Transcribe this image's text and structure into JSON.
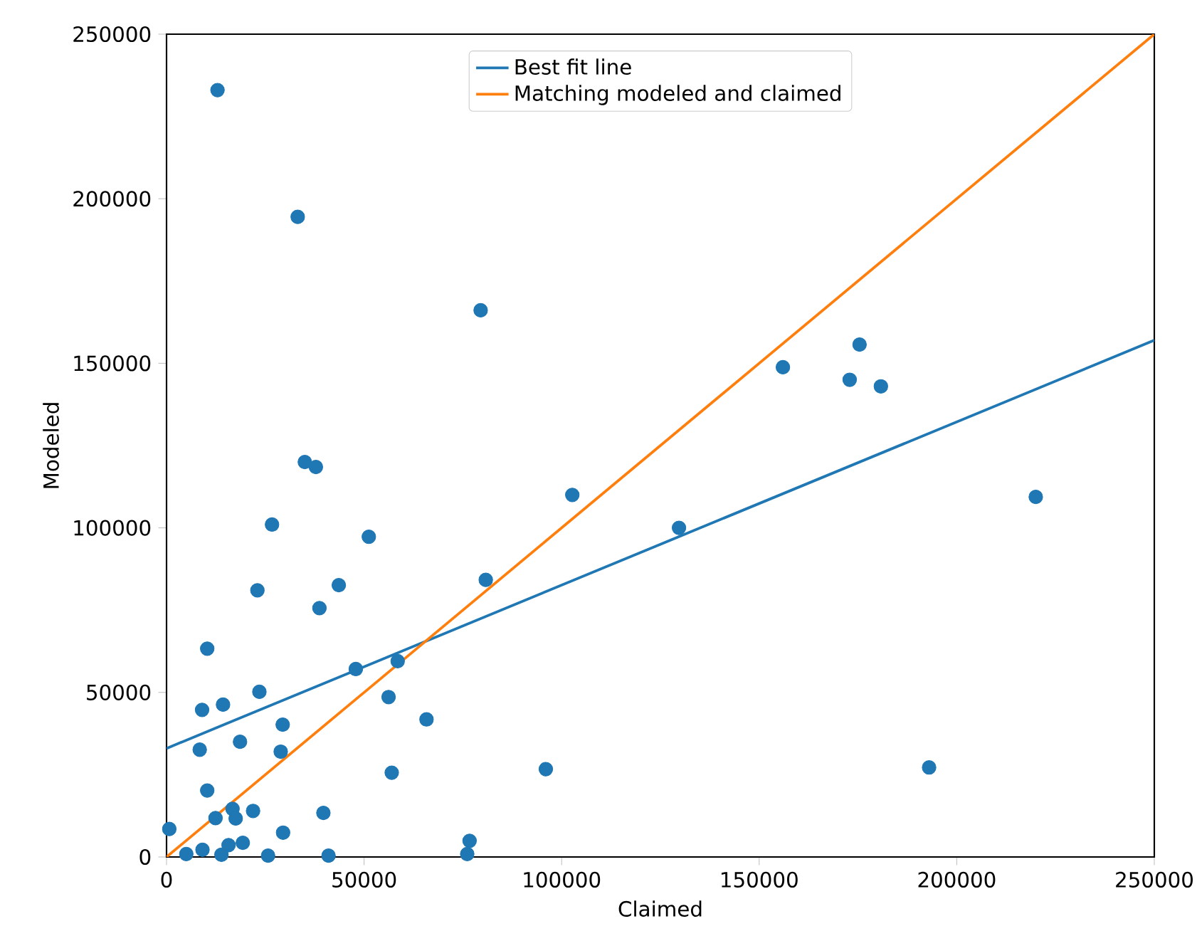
{
  "chart_data": {
    "type": "scatter",
    "xlabel": "Claimed",
    "ylabel": "Modeled",
    "xlim": [
      0,
      250000
    ],
    "ylim": [
      0,
      250000
    ],
    "xticks": [
      0,
      50000,
      100000,
      150000,
      200000,
      250000
    ],
    "yticks": [
      0,
      50000,
      100000,
      150000,
      200000,
      250000
    ],
    "legend": "top",
    "grid": false,
    "series": [
      {
        "marker": "circle",
        "color": "#1f77b4",
        "x": [
          12900,
          33200,
          79500,
          35000,
          37800,
          26700,
          51200,
          23000,
          43600,
          38700,
          80800,
          102700,
          129700,
          156000,
          175400,
          172900,
          180800,
          220000,
          193000,
          96000,
          10300,
          47900,
          58500,
          23500,
          9000,
          14300,
          29400,
          56200,
          65800,
          8400,
          18600,
          28900,
          57000,
          10300,
          700,
          12400,
          16700,
          17500,
          21900,
          39700,
          29500,
          19300,
          15700,
          9100,
          5000,
          13900,
          25700,
          41000,
          76700,
          76100
        ],
        "values": [
          233000,
          194500,
          166100,
          120000,
          118500,
          101000,
          97300,
          81000,
          82600,
          75600,
          84200,
          110000,
          100000,
          148800,
          155700,
          145000,
          143000,
          109400,
          27200,
          26700,
          63300,
          57100,
          59500,
          50200,
          44700,
          46300,
          40200,
          48600,
          41800,
          32600,
          35000,
          32000,
          25600,
          20200,
          8500,
          11800,
          14600,
          11700,
          14000,
          13400,
          7400,
          4300,
          3600,
          2200,
          900,
          700,
          400,
          400,
          4900,
          900
        ]
      },
      {
        "type": "line",
        "name": "Best fit line",
        "color": "#1f77b4",
        "line_style": "solid",
        "x": [
          0,
          250000
        ],
        "values": [
          33000,
          157000
        ]
      },
      {
        "type": "line",
        "name": "Matching modeled and claimed",
        "color": "#ff7f0e",
        "line_style": "solid",
        "x": [
          0,
          250000
        ],
        "values": [
          0,
          250000
        ]
      }
    ]
  }
}
